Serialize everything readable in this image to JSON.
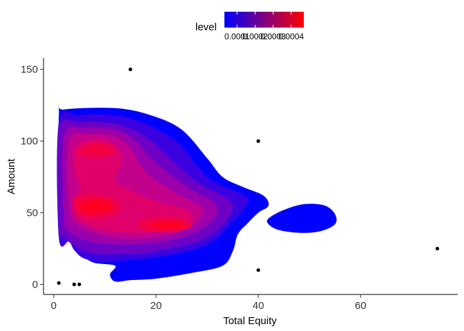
{
  "chart_data": {
    "type": "density_contour",
    "xlabel": "Total Equity",
    "ylabel": "Amount",
    "xlim": [
      -2,
      79
    ],
    "ylim": [
      -7,
      158
    ],
    "x_ticks": [
      0,
      20,
      40,
      60
    ],
    "y_ticks": [
      0,
      50,
      100,
      150
    ],
    "grid": false,
    "legend": {
      "title": "level",
      "placement": "top",
      "range": [
        3e-05,
        0.00047
      ],
      "breaks": [
        0.0001,
        0.0002,
        0.0003,
        0.0004
      ],
      "break_labels": [
        "0.0001",
        "0.0002",
        "0.0003",
        "0.0004"
      ],
      "color_low": "#0000FF",
      "color_high": "#FF0000"
    },
    "points": [
      {
        "x": 15,
        "y": 150
      },
      {
        "x": 40,
        "y": 100
      },
      {
        "x": 75,
        "y": 25
      },
      {
        "x": 40,
        "y": 10
      },
      {
        "x": 1,
        "y": 1
      },
      {
        "x": 4,
        "y": 0
      },
      {
        "x": 5,
        "y": 0
      }
    ],
    "density_peaks": [
      {
        "x": 7,
        "y": 55,
        "level": 0.00046
      },
      {
        "x": 7,
        "y": 98,
        "level": 0.00041
      },
      {
        "x": 22,
        "y": 41,
        "level": 0.00042
      }
    ],
    "contour_bands": [
      {
        "level": 5e-05,
        "color": "#0000FF",
        "outline": [
          [
            1,
            117
          ],
          [
            2,
            122
          ],
          [
            12,
            123
          ],
          [
            19,
            118
          ],
          [
            25,
            108
          ],
          [
            30,
            88
          ],
          [
            33,
            75
          ],
          [
            37,
            68
          ],
          [
            41,
            62
          ],
          [
            42,
            55
          ],
          [
            40,
            50
          ],
          [
            38,
            43
          ],
          [
            36,
            35
          ],
          [
            35,
            23
          ],
          [
            33,
            13
          ],
          [
            27,
            8
          ],
          [
            20,
            4
          ],
          [
            15,
            3
          ],
          [
            12,
            2
          ],
          [
            11,
            7
          ],
          [
            12,
            13
          ],
          [
            8,
            15
          ],
          [
            6,
            19
          ],
          [
            5,
            24
          ],
          [
            4,
            29
          ],
          [
            3,
            33
          ],
          [
            1,
            33
          ]
        ]
      },
      {
        "level": 5e-05,
        "color": "#0000FF",
        "outline": [
          [
            42,
            46
          ],
          [
            45,
            52
          ],
          [
            49,
            56
          ],
          [
            53,
            55
          ],
          [
            55,
            49
          ],
          [
            55,
            42
          ],
          [
            52,
            37
          ],
          [
            48,
            36
          ],
          [
            44,
            38
          ],
          [
            42,
            42
          ]
        ]
      },
      {
        "level": 0.0001,
        "color": "#3A00E0",
        "outline": [
          [
            1,
            113
          ],
          [
            5,
            118
          ],
          [
            12,
            118
          ],
          [
            18,
            112
          ],
          [
            24,
            100
          ],
          [
            28,
            83
          ],
          [
            31,
            72
          ],
          [
            35,
            66
          ],
          [
            38,
            60
          ],
          [
            37,
            52
          ],
          [
            35,
            44
          ],
          [
            33,
            36
          ],
          [
            31,
            30
          ],
          [
            27,
            24
          ],
          [
            20,
            19
          ],
          [
            14,
            17
          ],
          [
            10,
            16
          ],
          [
            6,
            18
          ],
          [
            4,
            24
          ],
          [
            3,
            30
          ],
          [
            1,
            33
          ]
        ]
      },
      {
        "level": 0.00015,
        "color": "#6E00C6",
        "outline": [
          [
            1,
            108
          ],
          [
            5,
            113
          ],
          [
            12,
            112
          ],
          [
            17,
            105
          ],
          [
            21,
            94
          ],
          [
            25,
            80
          ],
          [
            29,
            69
          ],
          [
            33,
            62
          ],
          [
            35,
            55
          ],
          [
            34,
            46
          ],
          [
            32,
            38
          ],
          [
            29,
            31
          ],
          [
            24,
            26
          ],
          [
            18,
            22
          ],
          [
            12,
            21
          ],
          [
            7,
            22
          ],
          [
            4,
            27
          ],
          [
            2,
            33
          ],
          [
            1,
            40
          ]
        ]
      },
      {
        "level": 0.0002,
        "color": "#9C00AA",
        "outline": [
          [
            2,
            104
          ],
          [
            6,
            109
          ],
          [
            12,
            108
          ],
          [
            16,
            100
          ],
          [
            19,
            88
          ],
          [
            23,
            76
          ],
          [
            27,
            66
          ],
          [
            31,
            58
          ],
          [
            32,
            50
          ],
          [
            30,
            41
          ],
          [
            26,
            34
          ],
          [
            20,
            29
          ],
          [
            13,
            28
          ],
          [
            7,
            30
          ],
          [
            3,
            37
          ],
          [
            2,
            46
          ]
        ]
      },
      {
        "level": 0.00025,
        "color": "#C3008C",
        "outline": [
          [
            3,
            100
          ],
          [
            7,
            105
          ],
          [
            12,
            103
          ],
          [
            15,
            95
          ],
          [
            17,
            83
          ],
          [
            20,
            72
          ],
          [
            25,
            62
          ],
          [
            29,
            53
          ],
          [
            28,
            43
          ],
          [
            23,
            35
          ],
          [
            17,
            32
          ],
          [
            10,
            34
          ],
          [
            5,
            41
          ],
          [
            3,
            52
          ]
        ]
      },
      {
        "level": 0.0003,
        "color": "#E0006A",
        "outline": [
          [
            4,
            95
          ],
          [
            7,
            101
          ],
          [
            11,
            99
          ],
          [
            13,
            92
          ],
          [
            13,
            82
          ],
          [
            12,
            72
          ],
          [
            16,
            64
          ],
          [
            20,
            58
          ],
          [
            26,
            52
          ],
          [
            27,
            44
          ],
          [
            22,
            38
          ],
          [
            16,
            36
          ],
          [
            9,
            39
          ],
          [
            5,
            45
          ],
          [
            4,
            56
          ],
          [
            5,
            68
          ],
          [
            4,
            80
          ]
        ]
      },
      {
        "level": 0.00035,
        "color": "#F20045",
        "outline": [
          [
            4,
            60
          ],
          [
            7,
            63
          ],
          [
            11,
            61
          ],
          [
            13,
            55
          ],
          [
            12,
            49
          ],
          [
            8,
            46
          ],
          [
            5,
            48
          ],
          [
            4,
            53
          ]
        ]
      },
      {
        "level": 0.00035,
        "color": "#F20045",
        "outline": [
          [
            5,
            94
          ],
          [
            8,
            99
          ],
          [
            11,
            97
          ],
          [
            12,
            93
          ],
          [
            10,
            89
          ],
          [
            7,
            89
          ],
          [
            5,
            91
          ]
        ]
      },
      {
        "level": 0.00035,
        "color": "#F20045",
        "outline": [
          [
            17,
            44
          ],
          [
            21,
            47
          ],
          [
            25,
            46
          ],
          [
            27,
            41
          ],
          [
            24,
            37
          ],
          [
            19,
            37
          ],
          [
            17,
            40
          ]
        ]
      },
      {
        "level": 0.0004,
        "color": "#FF0022",
        "outline": [
          [
            5,
            56
          ],
          [
            8,
            59
          ],
          [
            11,
            57
          ],
          [
            11,
            52
          ],
          [
            8,
            50
          ],
          [
            6,
            51
          ]
        ]
      },
      {
        "level": 0.0004,
        "color": "#FF0022",
        "outline": [
          [
            19,
            42
          ],
          [
            22,
            44
          ],
          [
            25,
            43
          ],
          [
            25,
            40
          ],
          [
            22,
            39
          ],
          [
            20,
            40
          ]
        ]
      }
    ]
  }
}
